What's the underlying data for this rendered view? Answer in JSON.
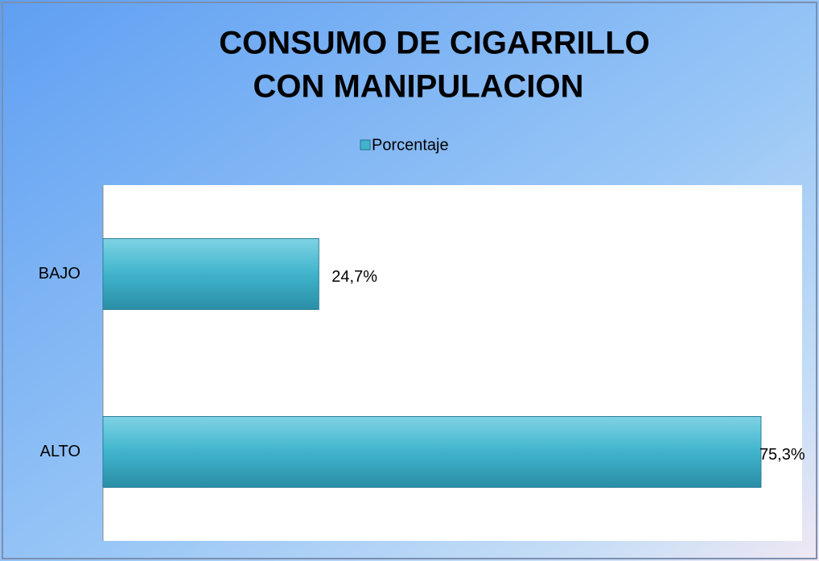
{
  "chart_data": {
    "type": "hbar",
    "title": [
      "CONSUMO DE CIGARRILLO",
      "CON MANIPULACION"
    ],
    "categories": [
      "BAJO",
      "ALTO"
    ],
    "series": [
      {
        "name": "Porcentaje",
        "color": "#3fb4cc",
        "values": [
          24.7,
          75.3
        ],
        "value_labels": [
          "24,7%",
          "75,3%"
        ]
      }
    ],
    "xlim": [
      0,
      80
    ],
    "legend": "top"
  }
}
